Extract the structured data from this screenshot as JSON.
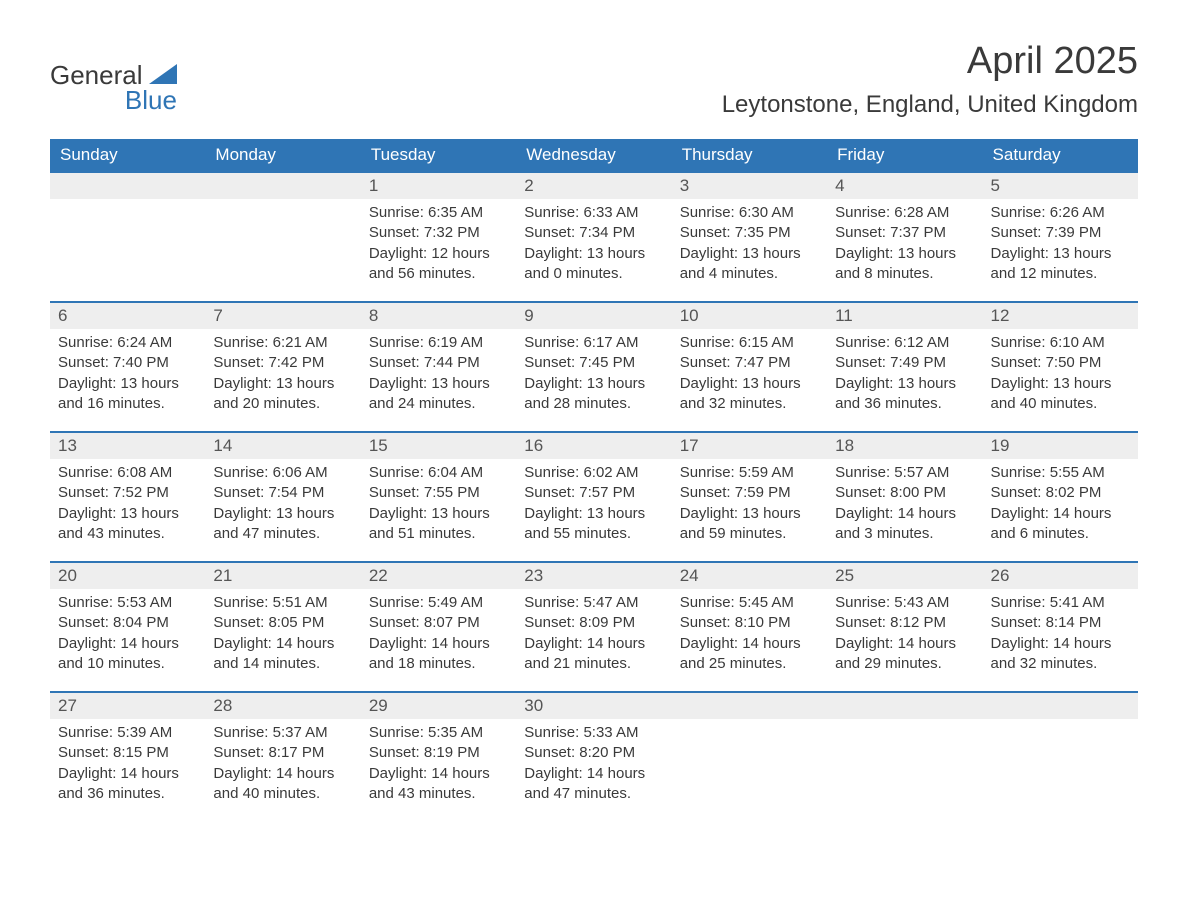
{
  "brand": {
    "part1": "General",
    "part2": "Blue"
  },
  "title": "April 2025",
  "location": "Leytonstone, England, United Kingdom",
  "colors": {
    "header_bg": "#2f75b5",
    "header_text": "#ffffff",
    "daynum_bg": "#eeeeee",
    "body_text": "#3a3a3a",
    "brand_blue": "#2f75b5"
  },
  "layout": {
    "columns": 7,
    "rows": 5,
    "type": "calendar-table"
  },
  "day_headers": [
    "Sunday",
    "Monday",
    "Tuesday",
    "Wednesday",
    "Thursday",
    "Friday",
    "Saturday"
  ],
  "weeks": [
    [
      {
        "day": "",
        "sunrise": "",
        "sunset": "",
        "daylight": ""
      },
      {
        "day": "",
        "sunrise": "",
        "sunset": "",
        "daylight": ""
      },
      {
        "day": "1",
        "sunrise": "Sunrise: 6:35 AM",
        "sunset": "Sunset: 7:32 PM",
        "daylight": "Daylight: 12 hours and 56 minutes."
      },
      {
        "day": "2",
        "sunrise": "Sunrise: 6:33 AM",
        "sunset": "Sunset: 7:34 PM",
        "daylight": "Daylight: 13 hours and 0 minutes."
      },
      {
        "day": "3",
        "sunrise": "Sunrise: 6:30 AM",
        "sunset": "Sunset: 7:35 PM",
        "daylight": "Daylight: 13 hours and 4 minutes."
      },
      {
        "day": "4",
        "sunrise": "Sunrise: 6:28 AM",
        "sunset": "Sunset: 7:37 PM",
        "daylight": "Daylight: 13 hours and 8 minutes."
      },
      {
        "day": "5",
        "sunrise": "Sunrise: 6:26 AM",
        "sunset": "Sunset: 7:39 PM",
        "daylight": "Daylight: 13 hours and 12 minutes."
      }
    ],
    [
      {
        "day": "6",
        "sunrise": "Sunrise: 6:24 AM",
        "sunset": "Sunset: 7:40 PM",
        "daylight": "Daylight: 13 hours and 16 minutes."
      },
      {
        "day": "7",
        "sunrise": "Sunrise: 6:21 AM",
        "sunset": "Sunset: 7:42 PM",
        "daylight": "Daylight: 13 hours and 20 minutes."
      },
      {
        "day": "8",
        "sunrise": "Sunrise: 6:19 AM",
        "sunset": "Sunset: 7:44 PM",
        "daylight": "Daylight: 13 hours and 24 minutes."
      },
      {
        "day": "9",
        "sunrise": "Sunrise: 6:17 AM",
        "sunset": "Sunset: 7:45 PM",
        "daylight": "Daylight: 13 hours and 28 minutes."
      },
      {
        "day": "10",
        "sunrise": "Sunrise: 6:15 AM",
        "sunset": "Sunset: 7:47 PM",
        "daylight": "Daylight: 13 hours and 32 minutes."
      },
      {
        "day": "11",
        "sunrise": "Sunrise: 6:12 AM",
        "sunset": "Sunset: 7:49 PM",
        "daylight": "Daylight: 13 hours and 36 minutes."
      },
      {
        "day": "12",
        "sunrise": "Sunrise: 6:10 AM",
        "sunset": "Sunset: 7:50 PM",
        "daylight": "Daylight: 13 hours and 40 minutes."
      }
    ],
    [
      {
        "day": "13",
        "sunrise": "Sunrise: 6:08 AM",
        "sunset": "Sunset: 7:52 PM",
        "daylight": "Daylight: 13 hours and 43 minutes."
      },
      {
        "day": "14",
        "sunrise": "Sunrise: 6:06 AM",
        "sunset": "Sunset: 7:54 PM",
        "daylight": "Daylight: 13 hours and 47 minutes."
      },
      {
        "day": "15",
        "sunrise": "Sunrise: 6:04 AM",
        "sunset": "Sunset: 7:55 PM",
        "daylight": "Daylight: 13 hours and 51 minutes."
      },
      {
        "day": "16",
        "sunrise": "Sunrise: 6:02 AM",
        "sunset": "Sunset: 7:57 PM",
        "daylight": "Daylight: 13 hours and 55 minutes."
      },
      {
        "day": "17",
        "sunrise": "Sunrise: 5:59 AM",
        "sunset": "Sunset: 7:59 PM",
        "daylight": "Daylight: 13 hours and 59 minutes."
      },
      {
        "day": "18",
        "sunrise": "Sunrise: 5:57 AM",
        "sunset": "Sunset: 8:00 PM",
        "daylight": "Daylight: 14 hours and 3 minutes."
      },
      {
        "day": "19",
        "sunrise": "Sunrise: 5:55 AM",
        "sunset": "Sunset: 8:02 PM",
        "daylight": "Daylight: 14 hours and 6 minutes."
      }
    ],
    [
      {
        "day": "20",
        "sunrise": "Sunrise: 5:53 AM",
        "sunset": "Sunset: 8:04 PM",
        "daylight": "Daylight: 14 hours and 10 minutes."
      },
      {
        "day": "21",
        "sunrise": "Sunrise: 5:51 AM",
        "sunset": "Sunset: 8:05 PM",
        "daylight": "Daylight: 14 hours and 14 minutes."
      },
      {
        "day": "22",
        "sunrise": "Sunrise: 5:49 AM",
        "sunset": "Sunset: 8:07 PM",
        "daylight": "Daylight: 14 hours and 18 minutes."
      },
      {
        "day": "23",
        "sunrise": "Sunrise: 5:47 AM",
        "sunset": "Sunset: 8:09 PM",
        "daylight": "Daylight: 14 hours and 21 minutes."
      },
      {
        "day": "24",
        "sunrise": "Sunrise: 5:45 AM",
        "sunset": "Sunset: 8:10 PM",
        "daylight": "Daylight: 14 hours and 25 minutes."
      },
      {
        "day": "25",
        "sunrise": "Sunrise: 5:43 AM",
        "sunset": "Sunset: 8:12 PM",
        "daylight": "Daylight: 14 hours and 29 minutes."
      },
      {
        "day": "26",
        "sunrise": "Sunrise: 5:41 AM",
        "sunset": "Sunset: 8:14 PM",
        "daylight": "Daylight: 14 hours and 32 minutes."
      }
    ],
    [
      {
        "day": "27",
        "sunrise": "Sunrise: 5:39 AM",
        "sunset": "Sunset: 8:15 PM",
        "daylight": "Daylight: 14 hours and 36 minutes."
      },
      {
        "day": "28",
        "sunrise": "Sunrise: 5:37 AM",
        "sunset": "Sunset: 8:17 PM",
        "daylight": "Daylight: 14 hours and 40 minutes."
      },
      {
        "day": "29",
        "sunrise": "Sunrise: 5:35 AM",
        "sunset": "Sunset: 8:19 PM",
        "daylight": "Daylight: 14 hours and 43 minutes."
      },
      {
        "day": "30",
        "sunrise": "Sunrise: 5:33 AM",
        "sunset": "Sunset: 8:20 PM",
        "daylight": "Daylight: 14 hours and 47 minutes."
      },
      {
        "day": "",
        "sunrise": "",
        "sunset": "",
        "daylight": ""
      },
      {
        "day": "",
        "sunrise": "",
        "sunset": "",
        "daylight": ""
      },
      {
        "day": "",
        "sunrise": "",
        "sunset": "",
        "daylight": ""
      }
    ]
  ]
}
